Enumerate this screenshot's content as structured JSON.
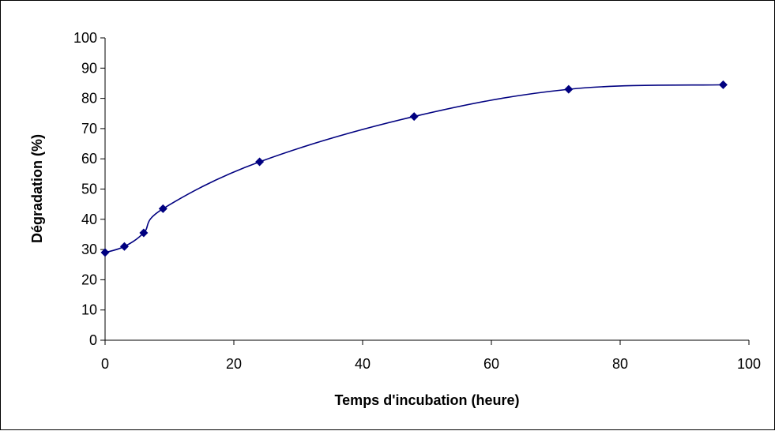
{
  "chart_data": {
    "type": "line",
    "title": "",
    "xlabel": "Temps d'incubation (heure)",
    "ylabel": "Dégradation (%)",
    "xlim": [
      0,
      100
    ],
    "ylim": [
      0,
      100
    ],
    "x_ticks": [
      0,
      20,
      40,
      60,
      80,
      100
    ],
    "y_ticks": [
      0,
      10,
      20,
      30,
      40,
      50,
      60,
      70,
      80,
      90,
      100
    ],
    "grid": false,
    "legend": "none",
    "line_color": "#000080",
    "marker": "diamond",
    "series": [
      {
        "x": [
          0,
          3,
          6,
          9,
          24,
          48,
          72,
          96
        ],
        "y": [
          29,
          31,
          35.5,
          43.5,
          59,
          74,
          83,
          84.5
        ]
      }
    ]
  }
}
